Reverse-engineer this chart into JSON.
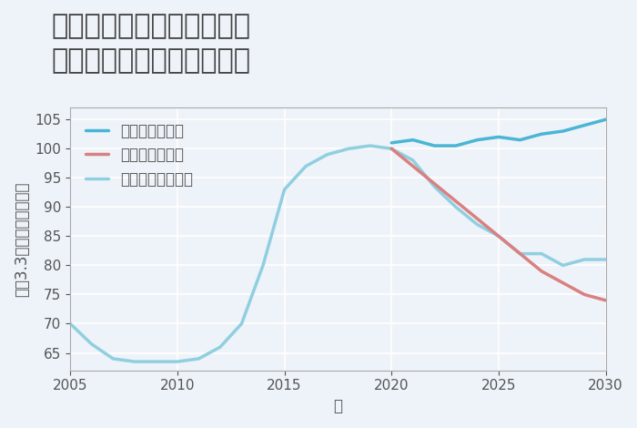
{
  "title": "福岡県築上郡吉富町楡生の\n中古マンションの価格推移",
  "xlabel": "年",
  "ylabel": "坪（3.3㎡）単価（万円）",
  "background_color": "#eef3f9",
  "plot_background_color": "#eef3f9",
  "grid_color": "#ffffff",
  "ylim": [
    62,
    107
  ],
  "xlim": [
    2005,
    2030
  ],
  "yticks": [
    65,
    70,
    75,
    80,
    85,
    90,
    95,
    100,
    105
  ],
  "xticks": [
    2005,
    2010,
    2015,
    2020,
    2025,
    2030
  ],
  "good_scenario": {
    "label": "グッドシナリオ",
    "color": "#4ab5d4",
    "x": [
      2020,
      2021,
      2022,
      2023,
      2024,
      2025,
      2026,
      2027,
      2028,
      2029,
      2030
    ],
    "y": [
      101,
      101.5,
      100.5,
      100.5,
      101.5,
      102,
      101.5,
      102.5,
      103,
      104,
      105
    ]
  },
  "bad_scenario": {
    "label": "バッドシナリオ",
    "color": "#d98080",
    "x": [
      2020,
      2021,
      2022,
      2023,
      2024,
      2025,
      2026,
      2027,
      2028,
      2029,
      2030
    ],
    "y": [
      100,
      97,
      94,
      91,
      88,
      85,
      82,
      79,
      77,
      75,
      74
    ]
  },
  "normal_scenario": {
    "label": "ノーマルシナリオ",
    "color": "#90cfe0",
    "x": [
      2005,
      2006,
      2007,
      2008,
      2009,
      2010,
      2011,
      2012,
      2013,
      2014,
      2015,
      2016,
      2017,
      2018,
      2019,
      2020,
      2021,
      2022,
      2023,
      2024,
      2025,
      2026,
      2027,
      2028,
      2029,
      2030
    ],
    "y": [
      70,
      66.5,
      64,
      63.5,
      63.5,
      63.5,
      64,
      66,
      70,
      80,
      93,
      97,
      99,
      100,
      100.5,
      100,
      98,
      93.5,
      90,
      87,
      85,
      82,
      82,
      80,
      81,
      81
    ]
  },
  "title_fontsize": 22,
  "axis_label_fontsize": 12,
  "tick_fontsize": 11,
  "legend_fontsize": 12,
  "line_width": 2.5
}
